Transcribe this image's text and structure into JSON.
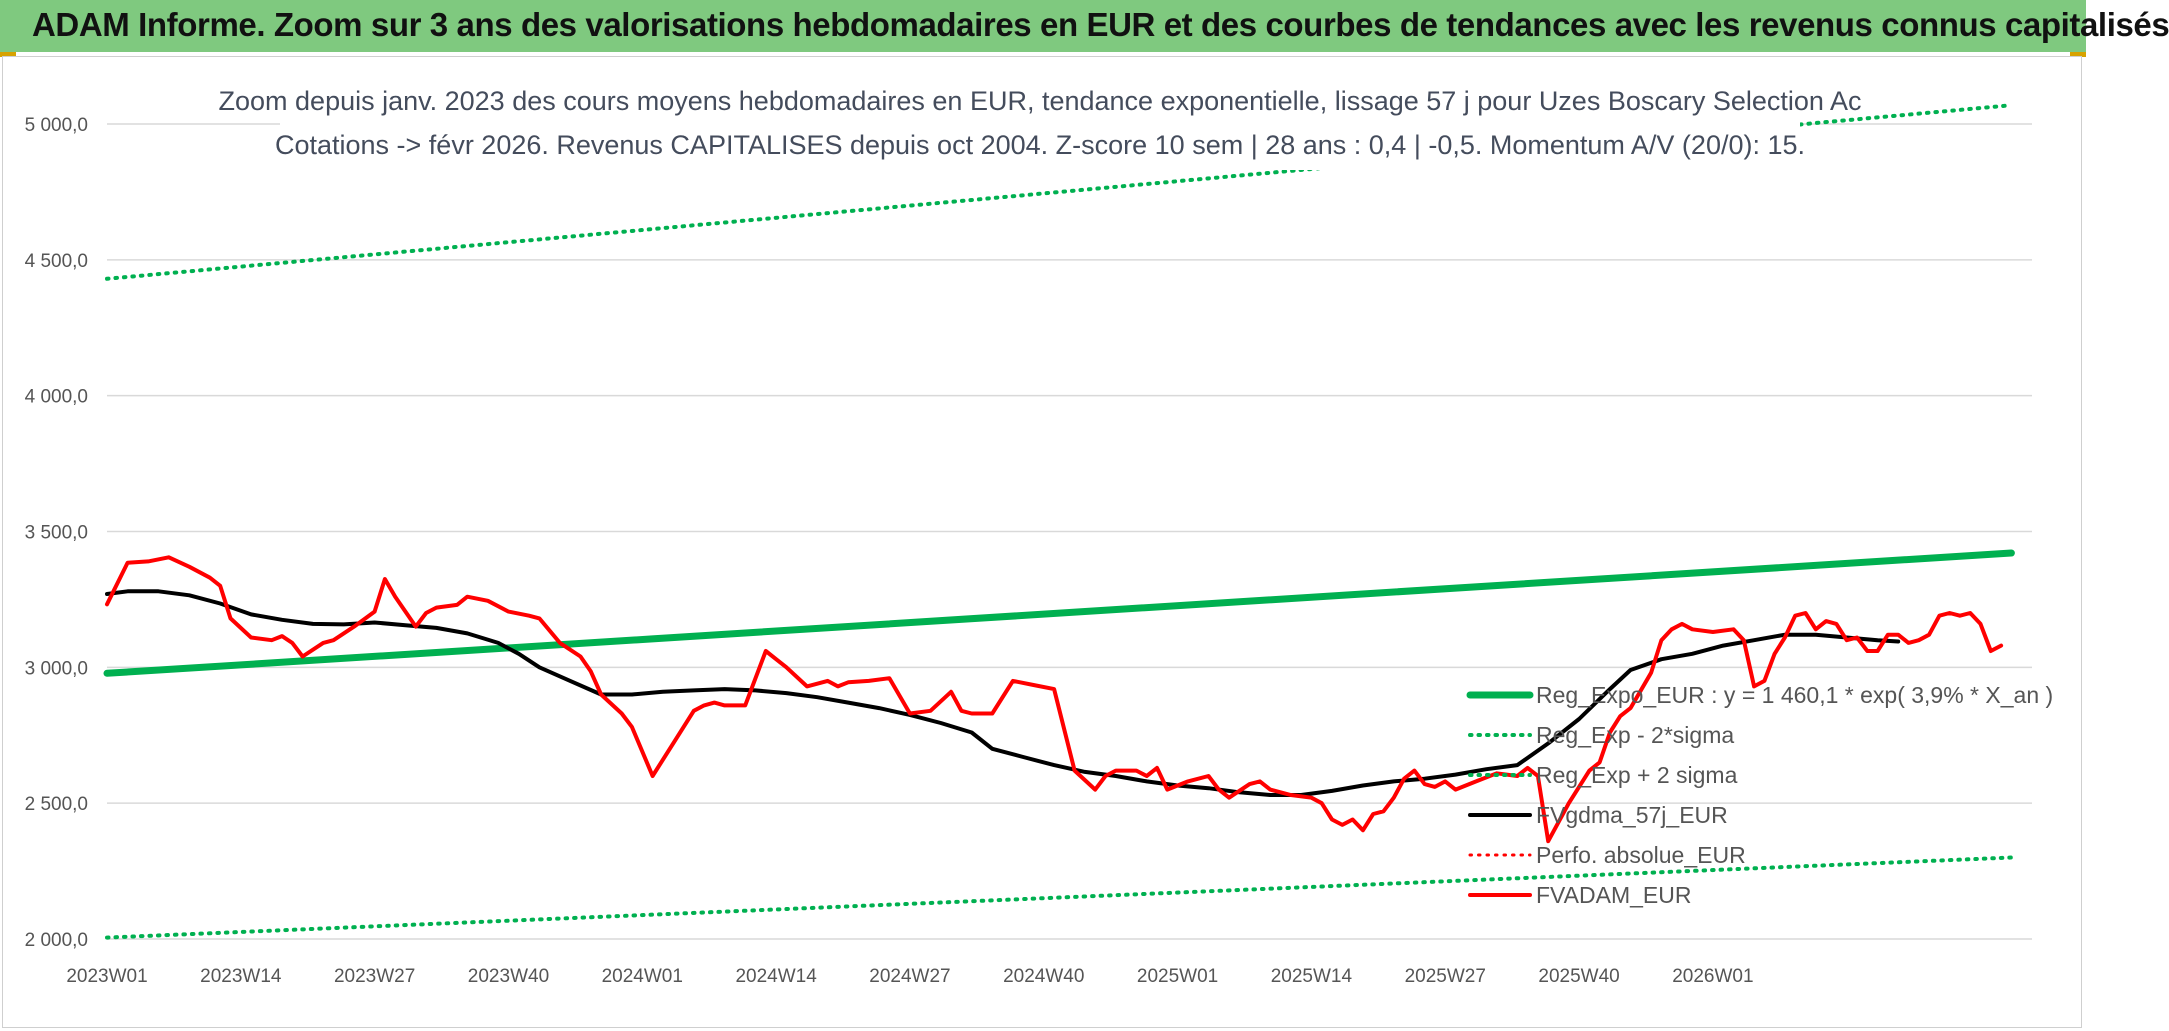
{
  "header": {
    "title": "ADAM Informe. Zoom sur 3 ans des valorisations hebdomadaires en EUR et des courbes de tendances avec les revenus connus capitalisés",
    "background": "#7fc97f"
  },
  "chart_data": {
    "type": "line",
    "title": "Zoom depuis janv. 2023 des cours moyens hebdomadaires en EUR, tendance exponentielle, lissage 57 j pour Uzes Boscary Selection Ac",
    "subtitle": "Cotations -> févr 2026. Revenus CAPITALISES depuis oct 2004. Z-score 10 sem | 28 ans : 0,4 | -0,5. Momentum A/V (20/0): 15.",
    "xlabel": "",
    "ylabel": "",
    "ylim": [
      2000,
      5000
    ],
    "yticks": [
      "2 000,0",
      "2 500,0",
      "3 000,0",
      "3 500,0",
      "4 000,0",
      "4 500,0",
      "5 000,0"
    ],
    "ytick_values": [
      2000,
      2500,
      3000,
      3500,
      4000,
      4500,
      5000
    ],
    "xticks": [
      "2023W01",
      "2023W14",
      "2023W27",
      "2023W40",
      "2024W01",
      "2024W14",
      "2024W27",
      "2024W40",
      "2025W01",
      "2025W14",
      "2025W27",
      "2025W40",
      "2026W01"
    ],
    "x_range_weeks": [
      0,
      165
    ],
    "grid": true,
    "legend_position": "bottom-right",
    "series": [
      {
        "name": "Reg_Expo_EUR : y = 1 460,1 * exp( 3,9% *  X_an )",
        "color": "#00b050",
        "style": "solid",
        "width": 7,
        "points": [
          [
            0,
            2978
          ],
          [
            165,
            3373
          ]
        ]
      },
      {
        "name": "Reg_Exp - 2*sigma",
        "color": "#00b050",
        "style": "dotted",
        "width": 4,
        "points": [
          [
            0,
            2005
          ],
          [
            165,
            2268
          ]
        ]
      },
      {
        "name": "Reg_Exp + 2 sigma",
        "color": "#00b050",
        "style": "dotted",
        "width": 4,
        "points": [
          [
            0,
            4430
          ],
          [
            165,
            5000
          ]
        ]
      },
      {
        "name": "FVgdma_57j_EUR",
        "color": "#000000",
        "style": "solid",
        "width": 4,
        "points": [
          [
            0,
            3270
          ],
          [
            2,
            3280
          ],
          [
            5,
            3280
          ],
          [
            8,
            3265
          ],
          [
            11,
            3235
          ],
          [
            14,
            3195
          ],
          [
            17,
            3175
          ],
          [
            20,
            3160
          ],
          [
            23,
            3158
          ],
          [
            26,
            3165
          ],
          [
            29,
            3155
          ],
          [
            32,
            3145
          ],
          [
            35,
            3125
          ],
          [
            38,
            3090
          ],
          [
            40,
            3050
          ],
          [
            42,
            3000
          ],
          [
            45,
            2950
          ],
          [
            48,
            2900
          ],
          [
            51,
            2900
          ],
          [
            54,
            2910
          ],
          [
            57,
            2915
          ],
          [
            60,
            2920
          ],
          [
            63,
            2915
          ],
          [
            66,
            2905
          ],
          [
            69,
            2890
          ],
          [
            72,
            2870
          ],
          [
            75,
            2850
          ],
          [
            78,
            2825
          ],
          [
            81,
            2795
          ],
          [
            84,
            2760
          ],
          [
            86,
            2700
          ],
          [
            89,
            2670
          ],
          [
            92,
            2640
          ],
          [
            95,
            2615
          ],
          [
            98,
            2600
          ],
          [
            101,
            2580
          ],
          [
            104,
            2565
          ],
          [
            107,
            2555
          ],
          [
            110,
            2540
          ],
          [
            113,
            2530
          ],
          [
            116,
            2530
          ],
          [
            119,
            2545
          ],
          [
            122,
            2565
          ],
          [
            125,
            2580
          ],
          [
            128,
            2590
          ],
          [
            131,
            2605
          ],
          [
            134,
            2625
          ],
          [
            137,
            2640
          ],
          [
            140,
            2720
          ],
          [
            143,
            2810
          ],
          [
            146,
            2920
          ],
          [
            148,
            2990
          ],
          [
            151,
            3030
          ],
          [
            154,
            3050
          ],
          [
            157,
            3080
          ],
          [
            160,
            3100
          ],
          [
            163,
            3120
          ],
          [
            166,
            3120
          ],
          [
            169,
            3110
          ],
          [
            172,
            3100
          ],
          [
            174,
            3095
          ]
        ]
      },
      {
        "name": "Perfo. absolue_EUR",
        "color": "#ff0000",
        "style": "dotted",
        "width": 3,
        "points": []
      },
      {
        "name": "FVADAM_EUR",
        "color": "#ff0000",
        "style": "solid",
        "width": 4,
        "points": [
          [
            0,
            3232
          ],
          [
            2,
            3385
          ],
          [
            4,
            3390
          ],
          [
            6,
            3405
          ],
          [
            8,
            3370
          ],
          [
            10,
            3330
          ],
          [
            11,
            3300
          ],
          [
            12,
            3180
          ],
          [
            14,
            3110
          ],
          [
            16,
            3100
          ],
          [
            17,
            3115
          ],
          [
            18,
            3090
          ],
          [
            19,
            3040
          ],
          [
            21,
            3090
          ],
          [
            22,
            3100
          ],
          [
            24,
            3150
          ],
          [
            26,
            3205
          ],
          [
            27,
            3325
          ],
          [
            28,
            3260
          ],
          [
            30,
            3150
          ],
          [
            31,
            3200
          ],
          [
            32,
            3220
          ],
          [
            34,
            3230
          ],
          [
            35,
            3260
          ],
          [
            37,
            3245
          ],
          [
            39,
            3205
          ],
          [
            41,
            3190
          ],
          [
            42,
            3180
          ],
          [
            44,
            3090
          ],
          [
            46,
            3040
          ],
          [
            47,
            2985
          ],
          [
            48,
            2900
          ],
          [
            50,
            2830
          ],
          [
            51,
            2780
          ],
          [
            53,
            2600
          ],
          [
            55,
            2720
          ],
          [
            57,
            2840
          ],
          [
            58,
            2860
          ],
          [
            59,
            2870
          ],
          [
            60,
            2860
          ],
          [
            62,
            2860
          ],
          [
            64,
            3060
          ],
          [
            65,
            3030
          ],
          [
            66,
            3000
          ],
          [
            68,
            2930
          ],
          [
            70,
            2950
          ],
          [
            71,
            2930
          ],
          [
            72,
            2945
          ],
          [
            74,
            2950
          ],
          [
            76,
            2960
          ],
          [
            78,
            2830
          ],
          [
            80,
            2840
          ],
          [
            82,
            2910
          ],
          [
            83,
            2840
          ],
          [
            84,
            2830
          ],
          [
            86,
            2830
          ],
          [
            88,
            2950
          ],
          [
            90,
            2935
          ],
          [
            92,
            2920
          ],
          [
            94,
            2620
          ],
          [
            96,
            2550
          ],
          [
            97,
            2600
          ],
          [
            98,
            2620
          ],
          [
            100,
            2620
          ],
          [
            101,
            2600
          ],
          [
            102,
            2630
          ],
          [
            103,
            2550
          ],
          [
            105,
            2580
          ],
          [
            107,
            2600
          ],
          [
            108,
            2550
          ],
          [
            109,
            2520
          ],
          [
            111,
            2570
          ],
          [
            112,
            2580
          ],
          [
            113,
            2550
          ],
          [
            115,
            2530
          ],
          [
            117,
            2520
          ],
          [
            118,
            2500
          ],
          [
            119,
            2440
          ],
          [
            120,
            2420
          ],
          [
            121,
            2440
          ],
          [
            122,
            2400
          ],
          [
            123,
            2460
          ],
          [
            124,
            2470
          ],
          [
            125,
            2520
          ],
          [
            126,
            2590
          ],
          [
            127,
            2620
          ],
          [
            128,
            2570
          ],
          [
            129,
            2560
          ],
          [
            130,
            2580
          ],
          [
            131,
            2550
          ],
          [
            133,
            2580
          ],
          [
            135,
            2610
          ],
          [
            137,
            2600
          ],
          [
            138,
            2630
          ],
          [
            139,
            2600
          ],
          [
            140,
            2360
          ],
          [
            142,
            2500
          ],
          [
            144,
            2620
          ],
          [
            145,
            2650
          ],
          [
            146,
            2760
          ],
          [
            147,
            2820
          ],
          [
            148,
            2850
          ],
          [
            150,
            2980
          ],
          [
            151,
            3100
          ],
          [
            152,
            3140
          ],
          [
            153,
            3160
          ],
          [
            154,
            3140
          ],
          [
            156,
            3130
          ],
          [
            158,
            3140
          ],
          [
            159,
            3100
          ],
          [
            160,
            2930
          ],
          [
            161,
            2950
          ],
          [
            162,
            3050
          ],
          [
            163,
            3110
          ],
          [
            164,
            3190
          ],
          [
            165,
            3200
          ],
          [
            166,
            3140
          ],
          [
            167,
            3170
          ],
          [
            168,
            3160
          ],
          [
            169,
            3100
          ],
          [
            170,
            3110
          ],
          [
            171,
            3060
          ],
          [
            172,
            3060
          ],
          [
            173,
            3120
          ],
          [
            174,
            3120
          ],
          [
            175,
            3090
          ],
          [
            176,
            3100
          ],
          [
            177,
            3120
          ],
          [
            178,
            3190
          ],
          [
            179,
            3200
          ],
          [
            180,
            3190
          ],
          [
            181,
            3200
          ],
          [
            182,
            3160
          ],
          [
            183,
            3060
          ],
          [
            184,
            3080
          ]
        ]
      }
    ]
  }
}
